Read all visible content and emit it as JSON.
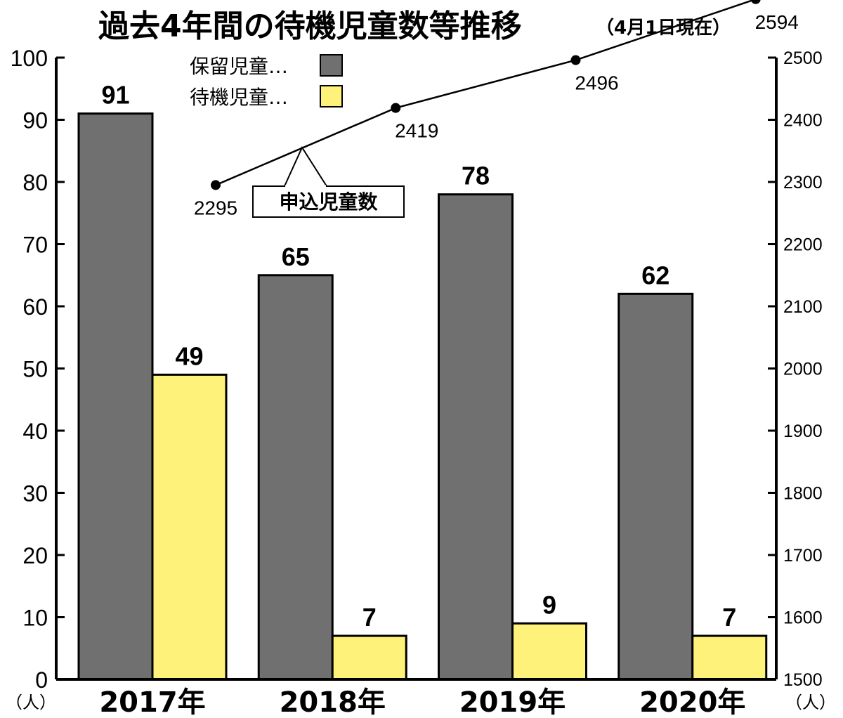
{
  "chart_data": {
    "type": "bar",
    "title": "過去4年間の待機児童数等推移",
    "subtitle": "（4月1日現在）",
    "categories": [
      "2017年",
      "2018年",
      "2019年",
      "2020年"
    ],
    "series": [
      {
        "name": "保留児童…",
        "type": "bar",
        "axis": "left",
        "color": "#707070",
        "values": [
          91,
          65,
          78,
          62
        ]
      },
      {
        "name": "待機児童…",
        "type": "bar",
        "axis": "left",
        "color": "#fff27a",
        "values": [
          49,
          7,
          9,
          7
        ]
      },
      {
        "name": "申込児童数",
        "type": "line",
        "axis": "right",
        "color": "#000000",
        "values": [
          2295,
          2419,
          2496,
          2594
        ]
      }
    ],
    "y_left": {
      "min": 0,
      "max": 100,
      "ticks": [
        0,
        10,
        20,
        30,
        40,
        50,
        60,
        70,
        80,
        90,
        100
      ],
      "unit": "（人）"
    },
    "y_right": {
      "min": 1500,
      "max": 2500,
      "ticks": [
        1500,
        1600,
        1700,
        1800,
        1900,
        2000,
        2100,
        2200,
        2300,
        2400,
        2500
      ],
      "unit": "（人）"
    },
    "legend_position": "top-left",
    "grid": false,
    "line_callout": "申込児童数"
  }
}
